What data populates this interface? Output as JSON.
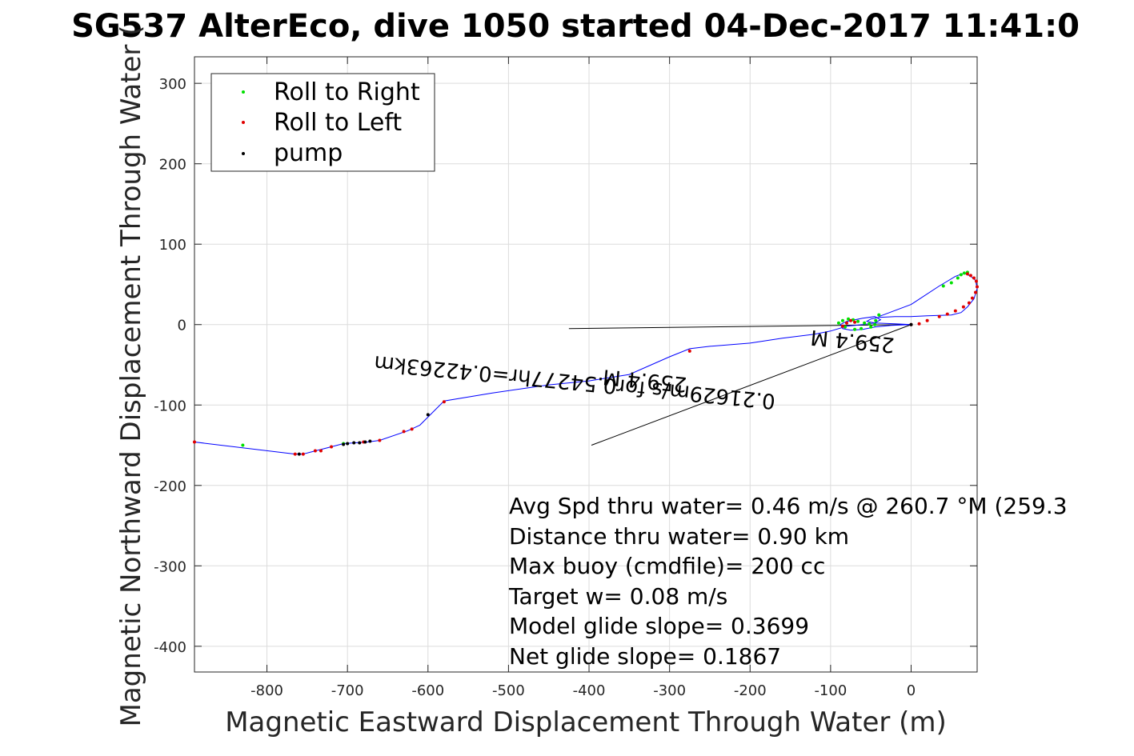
{
  "chart_data": {
    "type": "scatter",
    "title": "SG537 AlterEco, dive 1050 started 04-Dec-2017 11:41:0",
    "xlabel": "Magnetic Eastward Displacement Through Water (m)",
    "ylabel": "Magnetic Northward Displacement Through Water (",
    "xlim": [
      -890,
      82
    ],
    "ylim": [
      -432,
      333
    ],
    "xticks": [
      -800,
      -700,
      -600,
      -500,
      -400,
      -300,
      -200,
      -100,
      0
    ],
    "yticks": [
      -400,
      -300,
      -200,
      -100,
      0,
      100,
      200,
      300
    ],
    "grid": true,
    "legend_position": "top-left",
    "legend": [
      {
        "name": "Roll to Right",
        "color": "#00e000"
      },
      {
        "name": "Roll to Left",
        "color": "#e00000"
      },
      {
        "name": "pump",
        "color": "#000000"
      }
    ],
    "track_color": "#0000ff",
    "track": {
      "x": [
        -890,
        -765,
        -755,
        -740,
        -720,
        -705,
        -690,
        -675,
        -660,
        -625,
        -610,
        -580,
        -520,
        -450,
        -400,
        -350,
        -300,
        -275,
        -250,
        -200,
        -160,
        -120,
        -100,
        -80,
        -60,
        -45,
        -38,
        -45,
        -60,
        -80,
        -88,
        -85,
        -75,
        -60,
        -45,
        -25,
        0,
        -20,
        -45,
        -55,
        -50,
        -40,
        -20,
        0,
        20,
        50,
        62,
        70,
        78,
        82,
        80,
        74,
        66,
        55,
        45,
        35,
        0,
        -40
      ],
      "y": [
        -146,
        -161,
        -161,
        -157,
        -152,
        -148,
        -147,
        -146,
        -144,
        -132,
        -125,
        -95,
        -85,
        -75,
        -70,
        -62,
        -40,
        -30,
        -27,
        -23,
        -17,
        -12,
        -8,
        -2,
        0,
        2,
        6,
        10,
        8,
        4,
        0,
        -5,
        -7,
        -6,
        -3,
        -1,
        0,
        1,
        2,
        4,
        7,
        9,
        10,
        10,
        11,
        12,
        15,
        22,
        32,
        45,
        55,
        60,
        64,
        60,
        54,
        48,
        25,
        10
      ]
    },
    "roll_right": {
      "x": [
        -45,
        -52,
        -58,
        -66,
        -72,
        -78,
        -85,
        -90,
        -82,
        -70,
        -62,
        -50,
        -44,
        -40,
        40,
        50,
        58,
        62,
        66,
        70,
        -830,
        -705
      ],
      "y": [
        0,
        1,
        2,
        4,
        6,
        7,
        5,
        2,
        -3,
        -6,
        -5,
        -3,
        5,
        12,
        48,
        52,
        58,
        62,
        64,
        65,
        -150,
        -148
      ]
    },
    "roll_left": {
      "x": [
        -890,
        -765,
        -755,
        -740,
        -733,
        -720,
        -680,
        -660,
        -630,
        -620,
        -580,
        -275,
        -85,
        -80,
        -75,
        -70,
        0,
        10,
        20,
        35,
        45,
        55,
        65,
        72,
        76,
        80,
        82,
        81,
        78,
        74,
        70
      ],
      "y": [
        -146,
        -161,
        -161,
        -157,
        -157,
        -152,
        -146,
        -144,
        -133,
        -130,
        -96,
        -33,
        -2,
        2,
        5,
        3,
        0,
        1,
        5,
        10,
        13,
        17,
        22,
        27,
        33,
        40,
        47,
        54,
        58,
        61,
        63
      ]
    },
    "pump": {
      "x": [
        -760,
        -705,
        -700,
        -692,
        -685,
        -678,
        -672,
        -600,
        0
      ],
      "y": [
        -161,
        -149,
        -148,
        -147,
        -147,
        -146,
        -145,
        -112,
        0
      ]
    },
    "reference_lines": [
      {
        "x": [
          0,
          -425
        ],
        "y": [
          0,
          -5
        ]
      },
      {
        "x": [
          0,
          -397
        ],
        "y": [
          0,
          -150
        ]
      }
    ],
    "rotated_annotations": [
      {
        "text": "0.21629m/s for0.54277hr=0.42263km",
        "x": -417,
        "y": -63
      },
      {
        "text": "259.4 M",
        "x": -330,
        "y": -61
      },
      {
        "text": "259.4 M",
        "x": -72,
        "y": -12
      }
    ],
    "annotations": [
      "Avg Spd thru water=  0.46 m/s @ 260.7 °M (259.3",
      "Distance thru water=  0.90 km",
      "Max buoy (cmdfile)= 200 cc",
      "Target w= 0.08 m/s",
      "Model glide slope= 0.3699",
      "Net glide slope= 0.1867"
    ]
  }
}
